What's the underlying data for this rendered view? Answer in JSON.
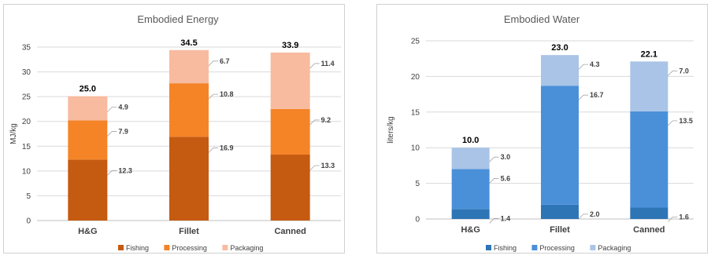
{
  "chart_data": [
    {
      "type": "bar",
      "stacked": true,
      "title": "Embodied Energy",
      "ylabel": "MJ/kg",
      "xlabel": "",
      "ylim": [
        0,
        35
      ],
      "yticks": [
        0,
        5,
        10,
        15,
        20,
        25,
        30,
        35
      ],
      "grid": true,
      "legend": "bottom",
      "categories": [
        "H&G",
        "Fillet",
        "Canned"
      ],
      "series": [
        {
          "name": "Fishing",
          "values": [
            12.3,
            16.9,
            13.3
          ],
          "color": "#C55A11"
        },
        {
          "name": "Processing",
          "values": [
            7.9,
            10.8,
            9.2
          ],
          "color": "#F58427"
        },
        {
          "name": "Packaging",
          "values": [
            4.9,
            6.7,
            11.4
          ],
          "color": "#F8BBA0"
        }
      ],
      "totals": [
        "25.0",
        "34.5",
        "33.9"
      ]
    },
    {
      "type": "bar",
      "stacked": true,
      "title": "Embodied Water",
      "ylabel": "liters/kg",
      "xlabel": "",
      "ylim": [
        0,
        25
      ],
      "yticks": [
        0,
        5,
        10,
        15,
        20,
        25
      ],
      "grid": true,
      "legend": "bottom",
      "categories": [
        "H&G",
        "Fillet",
        "Canned"
      ],
      "series": [
        {
          "name": "Fishing",
          "values": [
            1.4,
            2.0,
            1.6
          ],
          "color": "#2E75B6"
        },
        {
          "name": "Processing",
          "values": [
            5.6,
            16.7,
            13.5
          ],
          "color": "#4A90D9"
        },
        {
          "name": "Packaging",
          "values": [
            3.0,
            4.3,
            7.0
          ],
          "color": "#A9C4E6"
        }
      ],
      "totals": [
        "10.0",
        "23.0",
        "22.1"
      ]
    }
  ]
}
